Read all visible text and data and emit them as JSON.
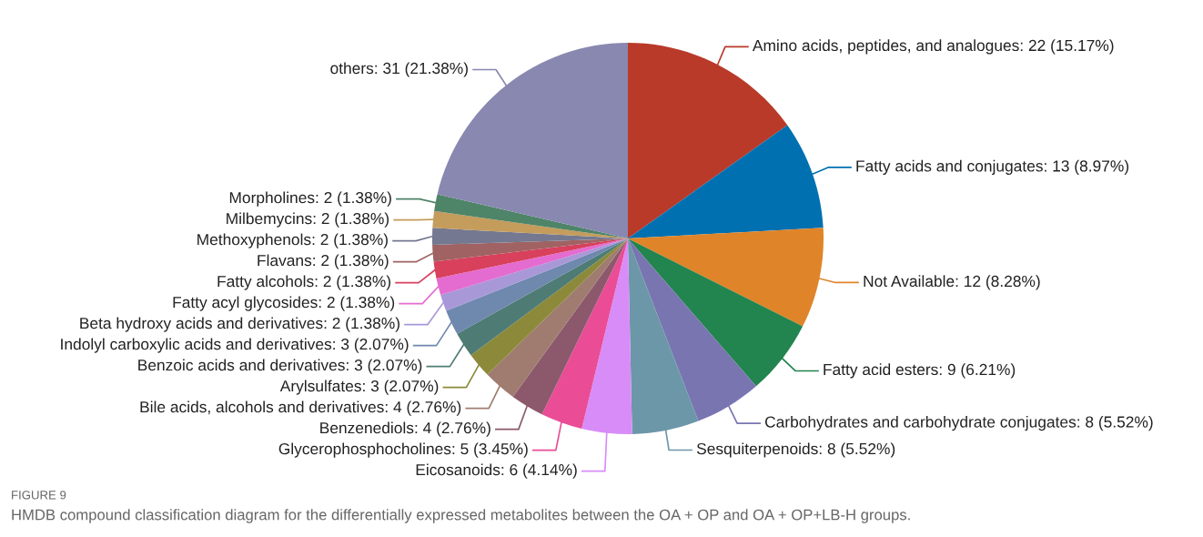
{
  "chart_data": {
    "type": "pie",
    "categories": [
      "Amino acids, peptides, and analogues",
      "Fatty acids and conjugates",
      "Not Available",
      "Fatty acid esters",
      "Carbohydrates and carbohydrate conjugates",
      "Sesquiterpenoids",
      "Eicosanoids",
      "Glycerophosphocholines",
      "Benzenediols",
      "Bile acids, alcohols and derivatives",
      "Arylsulfates",
      "Benzoic acids and derivatives",
      "Indolyl carboxylic acids and derivatives",
      "Beta hydroxy acids and derivatives",
      "Fatty acyl glycosides",
      "Fatty alcohols",
      "Flavans",
      "Methoxyphenols",
      "Milbemycins",
      "Morpholines",
      "others"
    ],
    "values": [
      22,
      13,
      12,
      9,
      8,
      8,
      6,
      5,
      4,
      4,
      3,
      3,
      3,
      2,
      2,
      2,
      2,
      2,
      2,
      2,
      31
    ],
    "value_labels": [
      "22 (15.17%)",
      "13 (8.97%)",
      "12 (8.28%)",
      "9 (6.21%)",
      "8 (5.52%)",
      "8 (5.52%)",
      "6 (4.14%)",
      "5 (3.45%)",
      "4 (2.76%)",
      "4 (2.76%)",
      "3 (2.07%)",
      "3 (2.07%)",
      "3 (2.07%)",
      "2 (1.38%)",
      "2 (1.38%)",
      "2 (1.38%)",
      "2 (1.38%)",
      "2 (1.38%)",
      "2 (1.38%)",
      "2 (1.38%)",
      "31 (21.38%)"
    ],
    "colors": [
      "#b93a29",
      "#0070b0",
      "#df8428",
      "#22844e",
      "#7875b0",
      "#6c97a8",
      "#d88cf8",
      "#ea4c96",
      "#8c596c",
      "#a07c70",
      "#8c8a3a",
      "#4e7c74",
      "#6e88ae",
      "#a898d8",
      "#e46cd0",
      "#d8405c",
      "#a06262",
      "#747890",
      "#c49c5c",
      "#4e8468",
      "#8888b0"
    ],
    "annotations": [
      "FIGURE 9",
      "HMDB compound classification diagram for the differentially expressed metabolites between the OA + OP and OA + OP+LB-H groups."
    ]
  }
}
